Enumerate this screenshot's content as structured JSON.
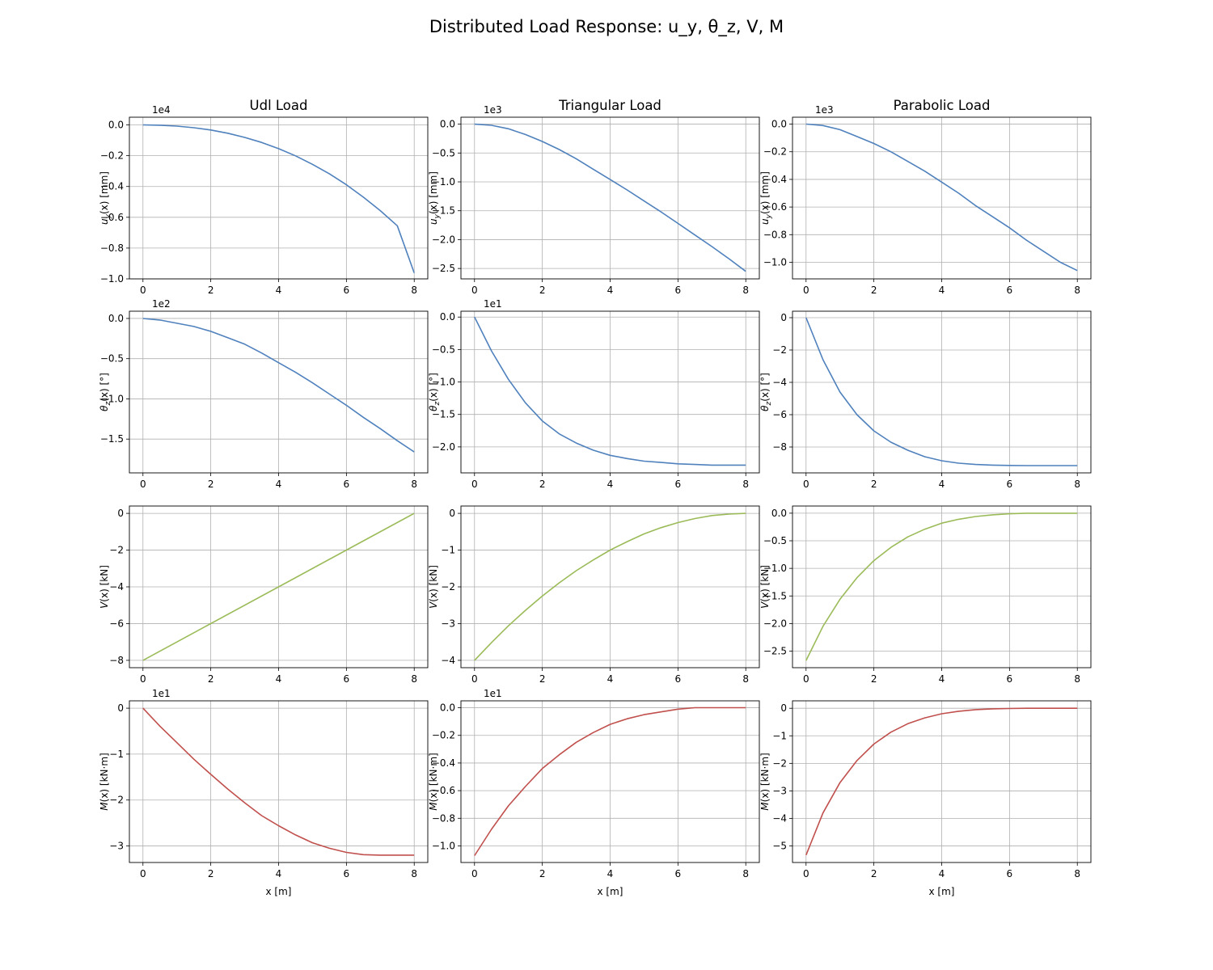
{
  "figure": {
    "title": "Distributed Load Response: u_y, θ_z, V, M"
  },
  "colors": {
    "deflection": "#4f81bd",
    "rotation": "#4f81bd",
    "shear": "#9bbb59",
    "moment": "#c0504d",
    "grid": "#b0b0b0"
  },
  "columns": [
    {
      "title": "Udl Load"
    },
    {
      "title": "Triangular Load"
    },
    {
      "title": "Parabolic Load"
    }
  ],
  "rows": [
    {
      "quantity": "deflection",
      "ylabel_main": "u",
      "ylabel_sub": "y",
      "ylabel_rest": "(x) [mm]"
    },
    {
      "quantity": "rotation",
      "ylabel_main": "θ",
      "ylabel_sub": "z",
      "ylabel_rest": "(x) [°]"
    },
    {
      "quantity": "shear",
      "ylabel_main": "V",
      "ylabel_sub": "",
      "ylabel_rest": "(x) [kN]"
    },
    {
      "quantity": "moment",
      "ylabel_main": "M",
      "ylabel_sub": "",
      "ylabel_rest": "(x) [kN·m]"
    }
  ],
  "xlabel": "x [m]",
  "chart_data": [
    {
      "type": "line",
      "title": "Udl Load",
      "ylabel": "u_y(x) [mm]",
      "xlabel": "",
      "xlim": [
        -0.4,
        8.4
      ],
      "xticks": [
        0,
        2,
        4,
        6,
        8
      ],
      "xtick_labels": [
        "0",
        "2",
        "4",
        "6",
        "8"
      ],
      "ylim": [
        -1.0,
        0.05
      ],
      "yticks": [
        0.0,
        -0.2,
        -0.4,
        -0.6,
        -0.8,
        -1.0
      ],
      "ytick_labels": [
        "0.0",
        "−0.2",
        "−0.4",
        "−0.6",
        "−0.8",
        "−1.0"
      ],
      "offset_label": "1e4",
      "grid": true,
      "color": "#4f81bd",
      "x": [
        0,
        0.5,
        1,
        1.5,
        2,
        2.5,
        3,
        3.5,
        4,
        4.5,
        5,
        5.5,
        6,
        6.5,
        7,
        7.5,
        8
      ],
      "y": [
        0,
        -0.002,
        -0.008,
        -0.018,
        -0.033,
        -0.054,
        -0.081,
        -0.114,
        -0.154,
        -0.201,
        -0.256,
        -0.318,
        -0.389,
        -0.469,
        -0.557,
        -0.655,
        -0.961
      ]
    },
    {
      "type": "line",
      "title": "Triangular Load",
      "ylabel": "u_y(x) [mm]",
      "xlabel": "",
      "xlim": [
        -0.4,
        8.4
      ],
      "xticks": [
        0,
        2,
        4,
        6,
        8
      ],
      "xtick_labels": [
        "0",
        "2",
        "4",
        "6",
        "8"
      ],
      "ylim": [
        -2.68,
        0.12
      ],
      "yticks": [
        0.0,
        -0.5,
        -1.0,
        -1.5,
        -2.0,
        -2.5
      ],
      "ytick_labels": [
        "0.0",
        "−0.5",
        "−1.0",
        "−1.5",
        "−2.0",
        "−2.5"
      ],
      "offset_label": "1e3",
      "grid": true,
      "color": "#4f81bd",
      "x": [
        0,
        0.5,
        1,
        1.5,
        2,
        2.5,
        3,
        3.5,
        4,
        4.5,
        5,
        5.5,
        6,
        6.5,
        7,
        7.5,
        8
      ],
      "y": [
        0,
        -0.02,
        -0.08,
        -0.18,
        -0.3,
        -0.44,
        -0.6,
        -0.78,
        -0.96,
        -1.14,
        -1.33,
        -1.52,
        -1.72,
        -1.92,
        -2.12,
        -2.33,
        -2.55
      ]
    },
    {
      "type": "line",
      "title": "Parabolic Load",
      "ylabel": "u_y(x) [mm]",
      "xlabel": "",
      "xlim": [
        -0.4,
        8.4
      ],
      "xticks": [
        0,
        2,
        4,
        6,
        8
      ],
      "xtick_labels": [
        "0",
        "2",
        "4",
        "6",
        "8"
      ],
      "ylim": [
        -1.12,
        0.05
      ],
      "yticks": [
        0.0,
        -0.2,
        -0.4,
        -0.6,
        -0.8,
        -1.0
      ],
      "ytick_labels": [
        "0.0",
        "−0.2",
        "−0.4",
        "−0.6",
        "−0.8",
        "−1.0"
      ],
      "offset_label": "1e3",
      "grid": true,
      "color": "#4f81bd",
      "x": [
        0,
        0.5,
        1,
        1.5,
        2,
        2.5,
        3,
        3.5,
        4,
        4.5,
        5,
        5.5,
        6,
        6.5,
        7,
        7.5,
        8
      ],
      "y": [
        0,
        -0.01,
        -0.04,
        -0.09,
        -0.14,
        -0.2,
        -0.27,
        -0.34,
        -0.42,
        -0.5,
        -0.59,
        -0.67,
        -0.75,
        -0.84,
        -0.92,
        -1.0,
        -1.06
      ]
    },
    {
      "type": "line",
      "title": "",
      "ylabel": "θ_z(x) [°]",
      "xlabel": "",
      "xlim": [
        -0.4,
        8.4
      ],
      "xticks": [
        0,
        2,
        4,
        6,
        8
      ],
      "xtick_labels": [
        "0",
        "2",
        "4",
        "6",
        "8"
      ],
      "ylim": [
        -1.92,
        0.09
      ],
      "yticks": [
        0.0,
        -0.5,
        -1.0,
        -1.5
      ],
      "ytick_labels": [
        "0.0",
        "−0.5",
        "−1.0",
        "−1.5"
      ],
      "offset_label": "1e2",
      "grid": true,
      "color": "#4f81bd",
      "x": [
        0,
        0.5,
        1,
        1.5,
        2,
        2.5,
        3,
        3.5,
        4,
        4.5,
        5,
        5.5,
        6,
        6.5,
        7,
        7.5,
        8
      ],
      "y": [
        0,
        -0.02,
        -0.06,
        -0.1,
        -0.16,
        -0.24,
        -0.32,
        -0.43,
        -0.55,
        -0.67,
        -0.8,
        -0.94,
        -1.08,
        -1.23,
        -1.37,
        -1.52,
        -1.66
      ]
    },
    {
      "type": "line",
      "title": "",
      "ylabel": "θ_z(x) [°]",
      "xlabel": "",
      "xlim": [
        -0.4,
        8.4
      ],
      "xticks": [
        0,
        2,
        4,
        6,
        8
      ],
      "xtick_labels": [
        "0",
        "2",
        "4",
        "6",
        "8"
      ],
      "ylim": [
        -2.4,
        0.09
      ],
      "yticks": [
        0.0,
        -0.5,
        -1.0,
        -1.5,
        -2.0
      ],
      "ytick_labels": [
        "0.0",
        "−0.5",
        "−1.0",
        "−1.5",
        "−2.0"
      ],
      "offset_label": "1e1",
      "grid": true,
      "color": "#4f81bd",
      "x": [
        0,
        0.5,
        1,
        1.5,
        2,
        2.5,
        3,
        3.5,
        4,
        4.5,
        5,
        5.5,
        6,
        6.5,
        7,
        7.5,
        8
      ],
      "y": [
        0,
        -0.52,
        -0.96,
        -1.32,
        -1.6,
        -1.8,
        -1.94,
        -2.05,
        -2.13,
        -2.18,
        -2.22,
        -2.24,
        -2.26,
        -2.27,
        -2.28,
        -2.28,
        -2.28
      ]
    },
    {
      "type": "line",
      "title": "",
      "ylabel": "θ_z(x) [°]",
      "xlabel": "",
      "xlim": [
        -0.4,
        8.4
      ],
      "xticks": [
        0,
        2,
        4,
        6,
        8
      ],
      "xtick_labels": [
        "0",
        "2",
        "4",
        "6",
        "8"
      ],
      "ylim": [
        -9.6,
        0.4
      ],
      "yticks": [
        0,
        -2,
        -4,
        -6,
        -8
      ],
      "ytick_labels": [
        "0",
        "−2",
        "−4",
        "−6",
        "−8"
      ],
      "offset_label": "",
      "grid": true,
      "color": "#4f81bd",
      "x": [
        0,
        0.5,
        1,
        1.5,
        2,
        2.5,
        3,
        3.5,
        4,
        4.5,
        5,
        5.5,
        6,
        6.5,
        7,
        7.5,
        8
      ],
      "y": [
        0,
        -2.6,
        -4.6,
        -6.0,
        -7.0,
        -7.7,
        -8.2,
        -8.6,
        -8.85,
        -9.0,
        -9.08,
        -9.12,
        -9.14,
        -9.15,
        -9.15,
        -9.15,
        -9.15
      ]
    },
    {
      "type": "line",
      "title": "",
      "ylabel": "V(x) [kN]",
      "xlabel": "",
      "xlim": [
        -0.4,
        8.4
      ],
      "xticks": [
        0,
        2,
        4,
        6,
        8
      ],
      "xtick_labels": [
        "0",
        "2",
        "4",
        "6",
        "8"
      ],
      "ylim": [
        -8.4,
        0.4
      ],
      "yticks": [
        0,
        -2,
        -4,
        -6,
        -8
      ],
      "ytick_labels": [
        "0",
        "−2",
        "−4",
        "−6",
        "−8"
      ],
      "offset_label": "",
      "grid": true,
      "color": "#9bbb59",
      "x": [
        0,
        8
      ],
      "y": [
        -8,
        0
      ]
    },
    {
      "type": "line",
      "title": "",
      "ylabel": "V(x) [kN]",
      "xlabel": "",
      "xlim": [
        -0.4,
        8.4
      ],
      "xticks": [
        0,
        2,
        4,
        6,
        8
      ],
      "xtick_labels": [
        "0",
        "2",
        "4",
        "6",
        "8"
      ],
      "ylim": [
        -4.2,
        0.2
      ],
      "yticks": [
        0,
        -1,
        -2,
        -3,
        -4
      ],
      "ytick_labels": [
        "0",
        "−1",
        "−2",
        "−3",
        "−4"
      ],
      "offset_label": "",
      "grid": true,
      "color": "#9bbb59",
      "x": [
        0,
        0.5,
        1,
        1.5,
        2,
        2.5,
        3,
        3.5,
        4,
        4.5,
        5,
        5.5,
        6,
        6.5,
        7,
        7.5,
        8
      ],
      "y": [
        -4.0,
        -3.52,
        -3.06,
        -2.64,
        -2.25,
        -1.89,
        -1.56,
        -1.27,
        -1.0,
        -0.77,
        -0.56,
        -0.39,
        -0.25,
        -0.14,
        -0.06,
        -0.02,
        0.0
      ]
    },
    {
      "type": "line",
      "title": "",
      "ylabel": "V(x) [kN]",
      "xlabel": "",
      "xlim": [
        -0.4,
        8.4
      ],
      "xticks": [
        0,
        2,
        4,
        6,
        8
      ],
      "xtick_labels": [
        "0",
        "2",
        "4",
        "6",
        "8"
      ],
      "ylim": [
        -2.8,
        0.13
      ],
      "yticks": [
        0.0,
        -0.5,
        -1.0,
        -1.5,
        -2.0,
        -2.5
      ],
      "ytick_labels": [
        "0.0",
        "−0.5",
        "−1.0",
        "−1.5",
        "−2.0",
        "−2.5"
      ],
      "offset_label": "",
      "grid": true,
      "color": "#9bbb59",
      "x": [
        0,
        0.5,
        1,
        1.5,
        2,
        2.5,
        3,
        3.5,
        4,
        4.5,
        5,
        5.5,
        6,
        6.5,
        7,
        7.5,
        8
      ],
      "y": [
        -2.67,
        -2.05,
        -1.56,
        -1.17,
        -0.86,
        -0.62,
        -0.43,
        -0.29,
        -0.18,
        -0.11,
        -0.06,
        -0.03,
        -0.01,
        0.0,
        0.0,
        0.0,
        0.0
      ]
    },
    {
      "type": "line",
      "title": "",
      "ylabel": "M(x) [kN·m]",
      "xlabel": "x [m]",
      "xlim": [
        -0.4,
        8.4
      ],
      "xticks": [
        0,
        2,
        4,
        6,
        8
      ],
      "xtick_labels": [
        "0",
        "2",
        "4",
        "6",
        "8"
      ],
      "ylim": [
        -3.36,
        0.16
      ],
      "yticks": [
        0,
        -1,
        -2,
        -3
      ],
      "ytick_labels": [
        "0",
        "−1",
        "−2",
        "−3"
      ],
      "offset_label": "1e1",
      "grid": true,
      "color": "#c0504d",
      "x": [
        0,
        0.5,
        1,
        1.5,
        2,
        2.5,
        3,
        3.5,
        4,
        4.5,
        5,
        5.5,
        6,
        6.5,
        7,
        7.5,
        8
      ],
      "y": [
        0,
        -0.39,
        -0.75,
        -1.11,
        -1.44,
        -1.76,
        -2.06,
        -2.34,
        -2.56,
        -2.76,
        -2.93,
        -3.05,
        -3.14,
        -3.19,
        -3.2,
        -3.2,
        -3.2
      ]
    },
    {
      "type": "line",
      "title": "",
      "ylabel": "M(x) [kN·m]",
      "xlabel": "x [m]",
      "xlim": [
        -0.4,
        8.4
      ],
      "xticks": [
        0,
        2,
        4,
        6,
        8
      ],
      "xtick_labels": [
        "0",
        "2",
        "4",
        "6",
        "8"
      ],
      "ylim": [
        -1.12,
        0.05
      ],
      "yticks": [
        0.0,
        -0.2,
        -0.4,
        -0.6,
        -0.8,
        -1.0
      ],
      "ytick_labels": [
        "0.0",
        "−0.2",
        "−0.4",
        "−0.6",
        "−0.8",
        "−1.0"
      ],
      "offset_label": "1e1",
      "grid": true,
      "color": "#c0504d",
      "x": [
        0,
        0.5,
        1,
        1.5,
        2,
        2.5,
        3,
        3.5,
        4,
        4.5,
        5,
        5.5,
        6,
        6.5,
        7,
        7.5,
        8
      ],
      "y": [
        -1.07,
        -0.88,
        -0.71,
        -0.57,
        -0.44,
        -0.34,
        -0.25,
        -0.18,
        -0.12,
        -0.08,
        -0.05,
        -0.03,
        -0.01,
        0.0,
        0.0,
        0.0,
        0.0
      ]
    },
    {
      "type": "line",
      "title": "",
      "ylabel": "M(x) [kN·m]",
      "xlabel": "x [m]",
      "xlim": [
        -0.4,
        8.4
      ],
      "xticks": [
        0,
        2,
        4,
        6,
        8
      ],
      "xtick_labels": [
        "0",
        "2",
        "4",
        "6",
        "8"
      ],
      "ylim": [
        -5.6,
        0.27
      ],
      "yticks": [
        0,
        -1,
        -2,
        -3,
        -4,
        -5
      ],
      "ytick_labels": [
        "0",
        "−1",
        "−2",
        "−3",
        "−4",
        "−5"
      ],
      "offset_label": "",
      "grid": true,
      "color": "#c0504d",
      "x": [
        0,
        0.5,
        1,
        1.5,
        2,
        2.5,
        3,
        3.5,
        4,
        4.5,
        5,
        5.5,
        6,
        6.5,
        7,
        7.5,
        8
      ],
      "y": [
        -5.33,
        -3.8,
        -2.7,
        -1.9,
        -1.3,
        -0.87,
        -0.56,
        -0.35,
        -0.2,
        -0.11,
        -0.05,
        -0.02,
        -0.01,
        0.0,
        0.0,
        0.0,
        0.0
      ]
    }
  ]
}
